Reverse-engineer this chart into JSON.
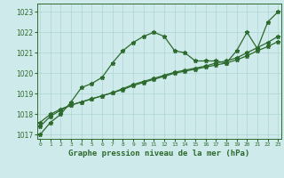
{
  "line1": [
    1017.0,
    1017.6,
    1018.0,
    1018.6,
    1019.3,
    1019.5,
    1019.8,
    1020.5,
    1021.1,
    1021.5,
    1021.8,
    1022.0,
    1021.8,
    1021.1,
    1021.0,
    1020.6,
    1020.6,
    1020.6,
    1020.5,
    1021.1,
    1022.0,
    1021.2,
    1022.5,
    1023.0
  ],
  "line2": [
    1017.4,
    1017.9,
    1018.2,
    1018.45,
    1018.6,
    1018.75,
    1018.9,
    1019.05,
    1019.2,
    1019.4,
    1019.55,
    1019.7,
    1019.85,
    1020.0,
    1020.1,
    1020.2,
    1020.3,
    1020.4,
    1020.5,
    1020.65,
    1020.85,
    1021.1,
    1021.3,
    1021.55
  ],
  "line3": [
    1017.6,
    1018.0,
    1018.25,
    1018.45,
    1018.6,
    1018.75,
    1018.9,
    1019.05,
    1019.25,
    1019.45,
    1019.6,
    1019.75,
    1019.9,
    1020.05,
    1020.15,
    1020.25,
    1020.35,
    1020.5,
    1020.6,
    1020.75,
    1021.0,
    1021.25,
    1021.5,
    1021.8
  ],
  "x": [
    0,
    1,
    2,
    3,
    4,
    5,
    6,
    7,
    8,
    9,
    10,
    11,
    12,
    13,
    14,
    15,
    16,
    17,
    18,
    19,
    20,
    21,
    22,
    23
  ],
  "ylim": [
    1016.8,
    1023.4
  ],
  "yticks": [
    1017,
    1018,
    1019,
    1020,
    1021,
    1022,
    1023
  ],
  "line_color": "#2d6a2d",
  "bg_color": "#ceeaea",
  "grid_color": "#aed4d4",
  "xlabel": "Graphe pression niveau de la mer (hPa)",
  "marker": "*",
  "marker_size": 3.5,
  "linewidth": 0.9
}
